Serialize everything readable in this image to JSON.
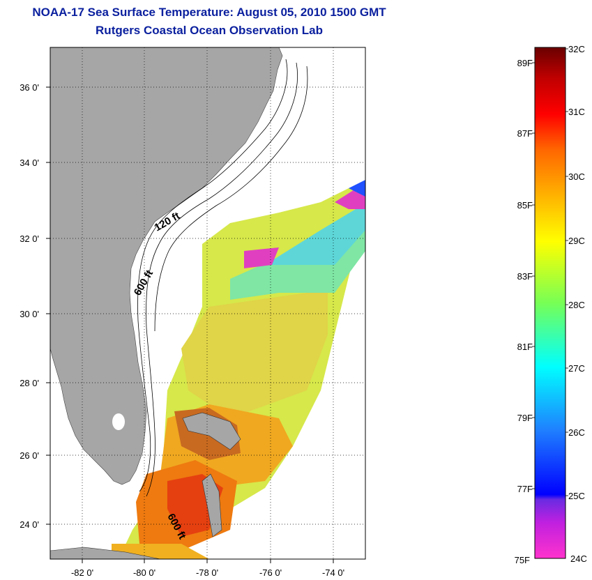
{
  "title": "NOAA-17 Sea Surface Temperature:  August 05, 2010 1500 GMT",
  "subtitle": "Rutgers Coastal Ocean Observation Lab",
  "map": {
    "lon_range": [
      -83,
      -73
    ],
    "lat_range": [
      23,
      37
    ],
    "lon_labels": [
      {
        "lon": -82,
        "label": "-82 0'"
      },
      {
        "lon": -80,
        "label": "-80 0'"
      },
      {
        "lon": -78,
        "label": "-78 0'"
      },
      {
        "lon": -76,
        "label": "-76 0'"
      },
      {
        "lon": -74,
        "label": "-74 0'"
      }
    ],
    "lat_labels": [
      {
        "lat": 36,
        "label": "36 0'"
      },
      {
        "lat": 34,
        "label": "34 0'"
      },
      {
        "lat": 32,
        "label": "32 0'"
      },
      {
        "lat": 30,
        "label": "30 0'"
      },
      {
        "lat": 28,
        "label": "28 0'"
      },
      {
        "lat": 26,
        "label": "26 0'"
      },
      {
        "lat": 24,
        "label": "24 0'"
      }
    ],
    "contour_labels": [
      {
        "text": "120 ft",
        "rotate": -30
      },
      {
        "text": "600 ft",
        "rotate": -60
      },
      {
        "text": "600 ft",
        "rotate": 62
      }
    ],
    "colors": {
      "land": "#a6a6a6",
      "ocean": "#ffffff",
      "grid": "#000000"
    }
  },
  "colorbar": {
    "range_c": [
      24,
      32
    ],
    "celsius_ticks": [
      "32C",
      "31C",
      "30C",
      "29C",
      "28C",
      "27C",
      "26C",
      "25C",
      "24C"
    ],
    "fahrenheit_ticks": [
      "89F",
      "87F",
      "85F",
      "83F",
      "81F",
      "79F",
      "77F",
      "75F"
    ],
    "fahrenheit_values": [
      89,
      87,
      85,
      83,
      81,
      79,
      77,
      75
    ],
    "stops": [
      "#ff33cc",
      "#8a2be2",
      "#0000ff",
      "#1a8cff",
      "#00ffff",
      "#66ff66",
      "#ffff00",
      "#ffa500",
      "#ff6600",
      "#ff0000",
      "#b30000",
      "#800000"
    ]
  }
}
